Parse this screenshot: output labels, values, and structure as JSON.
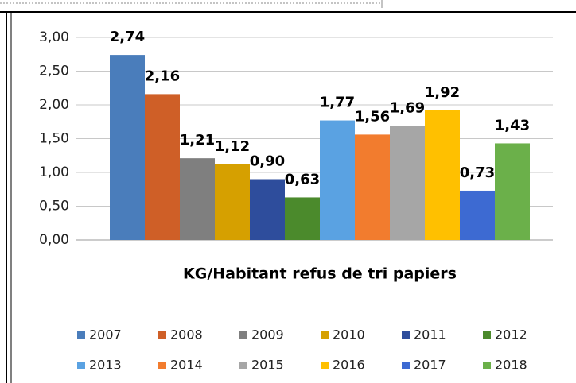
{
  "chart_data": {
    "type": "bar",
    "x_label": "KG/Habitant refus de tri papiers",
    "categories": [
      "2007",
      "2008",
      "2009",
      "2010",
      "2011",
      "2012",
      "2013",
      "2014",
      "2015",
      "2016",
      "2017",
      "2018"
    ],
    "values": [
      2.74,
      2.16,
      1.21,
      1.12,
      0.9,
      0.63,
      1.77,
      1.56,
      1.69,
      1.92,
      0.73,
      1.43
    ],
    "value_labels": [
      "2,74",
      "2,16",
      "1,21",
      "1,12",
      "0,90",
      "0,63",
      "1,77",
      "1,56",
      "1,69",
      "1,92",
      "0,73",
      "1,43"
    ],
    "colors": [
      "#4a7dbb",
      "#cf5f27",
      "#7f7f7f",
      "#d6a000",
      "#2e4d9c",
      "#4b8a2c",
      "#5aa2e2",
      "#f27c2e",
      "#a6a6a6",
      "#ffc000",
      "#3d6ad2",
      "#6bb04a"
    ],
    "ylim": [
      0,
      3
    ],
    "yticks": [
      {
        "value": 0,
        "label": "0,00"
      },
      {
        "value": 0.5,
        "label": "0,50"
      },
      {
        "value": 1,
        "label": "1,00"
      },
      {
        "value": 1.5,
        "label": "1,50"
      },
      {
        "value": 2,
        "label": "2,00"
      },
      {
        "value": 2.5,
        "label": "2,50"
      },
      {
        "value": 3,
        "label": "3,00"
      }
    ],
    "grid": true
  }
}
